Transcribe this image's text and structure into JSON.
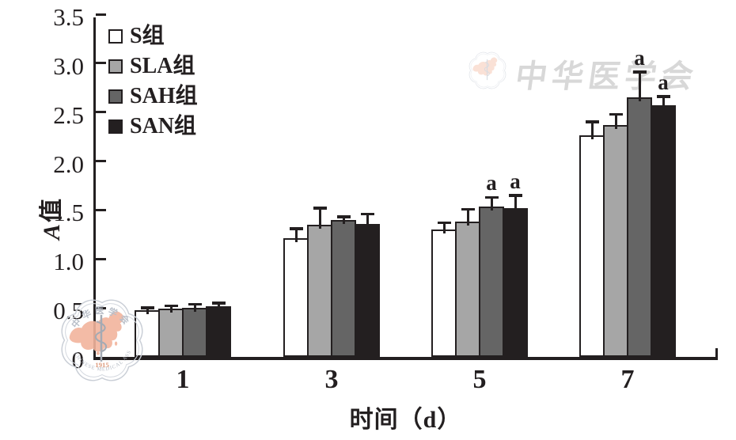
{
  "watermark": {
    "script_text": "中华医学会",
    "seal": {
      "ring_text_top": "中华医学会",
      "ring_text_bottom": "CHINESE MEDICAL ASSOCIATION",
      "year": "1915"
    },
    "colors": {
      "ring": "#c9ced6",
      "map": "#f2b49c",
      "script": "#d8d8d8"
    }
  },
  "chart_data": {
    "type": "bar",
    "title": "",
    "xlabel": "时间（d）",
    "ylabel": "A值",
    "ylim": [
      0,
      3.5
    ],
    "yticks": [
      "0",
      "0.5",
      "1.0",
      "1.5",
      "2.0",
      "2.5",
      "3.0",
      "3.5"
    ],
    "categories": [
      "1",
      "3",
      "5",
      "7"
    ],
    "grid": false,
    "legend_position": "upper-left-inside",
    "bar_outline_color": "#231f20",
    "axis_color": "#231f20",
    "error_bars": true,
    "series": [
      {
        "name": "S组",
        "color": "#ffffff",
        "values": [
          0.48,
          1.21,
          1.3,
          2.26
        ],
        "errors": [
          0.03,
          0.11,
          0.08,
          0.15
        ],
        "annotations": [
          "",
          "",
          "",
          ""
        ]
      },
      {
        "name": "SLA组",
        "color": "#a6a6a6",
        "values": [
          0.49,
          1.35,
          1.38,
          2.37
        ],
        "errors": [
          0.04,
          0.18,
          0.14,
          0.12
        ],
        "annotations": [
          "",
          "",
          "",
          ""
        ]
      },
      {
        "name": "SAH组",
        "color": "#656565",
        "values": [
          0.5,
          1.4,
          1.54,
          2.65
        ],
        "errors": [
          0.05,
          0.04,
          0.1,
          0.27
        ],
        "annotations": [
          "",
          "",
          "a",
          "a"
        ]
      },
      {
        "name": "SAN组",
        "color": "#231f20",
        "values": [
          0.52,
          1.36,
          1.52,
          2.57
        ],
        "errors": [
          0.04,
          0.11,
          0.14,
          0.1
        ],
        "annotations": [
          "",
          "",
          "a",
          "a"
        ]
      }
    ]
  }
}
